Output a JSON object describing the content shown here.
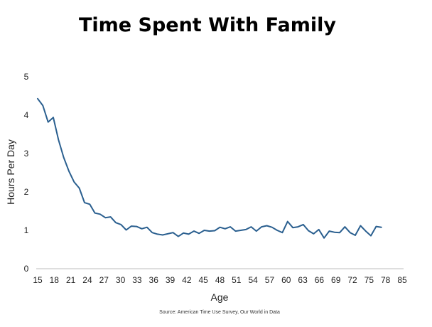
{
  "chart_data": {
    "type": "line",
    "title": "Time Spent With Family",
    "xlabel": "Age",
    "ylabel": "Hours Per Day",
    "source": "Source: American Time Use Survey, Our World in Data",
    "xlim": [
      15,
      85
    ],
    "ylim": [
      0,
      5
    ],
    "xticks": [
      15,
      18,
      21,
      24,
      27,
      30,
      33,
      36,
      39,
      42,
      45,
      48,
      51,
      54,
      57,
      60,
      63,
      66,
      69,
      72,
      75,
      78,
      85
    ],
    "yticks": [
      0,
      1,
      2,
      3,
      4,
      5
    ],
    "grid": false,
    "line_color": "#2a5f8f",
    "series": [
      {
        "x": [
          15,
          16,
          17,
          18,
          19,
          20,
          21,
          22,
          23,
          24,
          25,
          26,
          27,
          28,
          29,
          30,
          31,
          32,
          33,
          34,
          35,
          36,
          37,
          38,
          39,
          40,
          41,
          42,
          43,
          44,
          45,
          46,
          47,
          48,
          49,
          50,
          51,
          52,
          53,
          54,
          55,
          56,
          57,
          58,
          59,
          60,
          61,
          62,
          63,
          64,
          65,
          66,
          67,
          68,
          69,
          70,
          71,
          72,
          73,
          74,
          75,
          76,
          77,
          78,
          79,
          80,
          81
        ],
        "values": [
          4.43,
          4.25,
          3.82,
          3.94,
          3.36,
          2.9,
          2.54,
          2.26,
          2.1,
          1.72,
          1.68,
          1.45,
          1.42,
          1.33,
          1.35,
          1.2,
          1.15,
          1.01,
          1.11,
          1.1,
          1.04,
          1.08,
          0.94,
          0.9,
          0.88,
          0.91,
          0.94,
          0.84,
          0.93,
          0.9,
          0.98,
          0.92,
          1.0,
          0.98,
          0.99,
          1.08,
          1.04,
          1.09,
          0.98,
          1.0,
          1.02,
          1.09,
          0.98,
          1.09,
          1.12,
          1.08,
          1.0,
          0.94,
          1.23,
          1.07,
          1.09,
          1.15,
          0.99,
          0.91,
          1.02,
          0.8,
          0.98,
          0.95,
          0.94,
          1.09,
          0.94,
          0.87,
          1.12,
          0.98,
          0.86,
          1.1,
          1.08
        ]
      }
    ]
  }
}
